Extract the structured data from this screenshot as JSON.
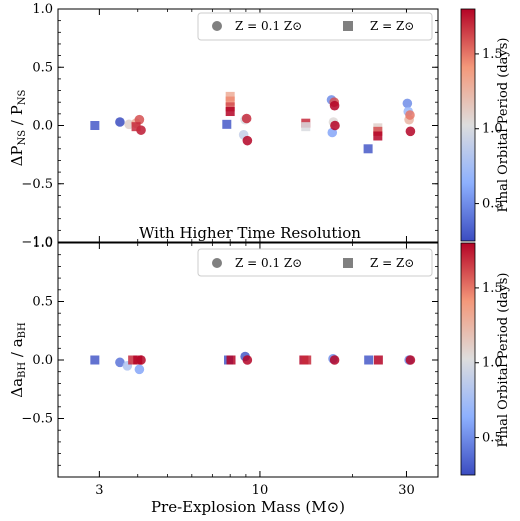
{
  "chart_data": [
    {
      "type": "scatter",
      "panel": "top",
      "ylabel": "ΔP_NS / P_NS",
      "ylim": [
        -1.0,
        1.0
      ],
      "yticks": [
        "−1.0",
        "−0.5",
        "0.0",
        "0.5",
        "1.0"
      ],
      "xscale": "log",
      "xlim": [
        2.2,
        38
      ],
      "annotation": "With Higher Time Resolution",
      "legend": {
        "placement": "top-right",
        "entries": [
          "Z = 0.1 Z⊙",
          "Z = Z⊙"
        ]
      },
      "series": [
        {
          "name": "Z = 0.1 Z⊙",
          "marker": "circle",
          "points": [
            {
              "x": 3.5,
              "y": 0.03,
              "p": 0.25
            },
            {
              "x": 3.75,
              "y": 0.01,
              "p": 1.1
            },
            {
              "x": 3.95,
              "y": 0.02,
              "p": 1.3
            },
            {
              "x": 4.05,
              "y": 0.05,
              "p": 1.6
            },
            {
              "x": 4.1,
              "y": -0.04,
              "p": 1.75
            },
            {
              "x": 8.85,
              "y": -0.08,
              "p": 0.9
            },
            {
              "x": 8.95,
              "y": 0.05,
              "p": 1.0
            },
            {
              "x": 9.05,
              "y": 0.06,
              "p": 1.7
            },
            {
              "x": 9.1,
              "y": -0.13,
              "p": 1.8
            },
            {
              "x": 17.1,
              "y": 0.22,
              "p": 0.5
            },
            {
              "x": 17.2,
              "y": -0.06,
              "p": 0.6
            },
            {
              "x": 17.35,
              "y": 0.03,
              "p": 1.05
            },
            {
              "x": 17.45,
              "y": 0.2,
              "p": 1.6
            },
            {
              "x": 17.5,
              "y": 0.17,
              "p": 1.8
            },
            {
              "x": 17.55,
              "y": 0.0,
              "p": 1.8
            },
            {
              "x": 30.2,
              "y": 0.19,
              "p": 0.5
            },
            {
              "x": 30.4,
              "y": 0.12,
              "p": 0.7
            },
            {
              "x": 30.6,
              "y": 0.05,
              "p": 1.25
            },
            {
              "x": 30.8,
              "y": 0.09,
              "p": 1.5
            },
            {
              "x": 30.9,
              "y": -0.05,
              "p": 1.8
            }
          ]
        },
        {
          "name": "Z = Z⊙",
          "marker": "square",
          "points": [
            {
              "x": 2.9,
              "y": 0.0,
              "p": 0.3
            },
            {
              "x": 3.95,
              "y": -0.01,
              "p": 1.7
            },
            {
              "x": 7.8,
              "y": 0.01,
              "p": 0.3
            },
            {
              "x": 8.0,
              "y": 0.25,
              "p": 1.3
            },
            {
              "x": 8.0,
              "y": 0.21,
              "p": 1.45
            },
            {
              "x": 8.0,
              "y": 0.16,
              "p": 1.6
            },
            {
              "x": 8.0,
              "y": 0.12,
              "p": 1.8
            },
            {
              "x": 14.1,
              "y": 0.02,
              "p": 1.7
            },
            {
              "x": 14.1,
              "y": -0.01,
              "p": 1.0
            },
            {
              "x": 22.5,
              "y": -0.2,
              "p": 0.3
            },
            {
              "x": 24.2,
              "y": -0.02,
              "p": 1.1
            },
            {
              "x": 24.2,
              "y": -0.05,
              "p": 1.6
            },
            {
              "x": 24.2,
              "y": -0.09,
              "p": 1.8
            }
          ]
        }
      ]
    },
    {
      "type": "scatter",
      "panel": "bottom",
      "ylabel": "Δa_BH / a_BH",
      "xlabel": "Pre-Explosion Mass (M⊙)",
      "ylim": [
        -1.0,
        1.0
      ],
      "yticks": [
        "−0.5",
        "0.0",
        "0.5",
        "1.0"
      ],
      "xscale": "log",
      "xlim": [
        2.2,
        38
      ],
      "xticks": [
        "3",
        "10",
        "30"
      ],
      "legend": {
        "placement": "top-right",
        "entries": [
          "Z = 0.1 Z⊙",
          "Z = Z⊙"
        ]
      },
      "series": [
        {
          "name": "Z = 0.1 Z⊙",
          "marker": "circle",
          "points": [
            {
              "x": 3.5,
              "y": -0.02,
              "p": 0.4
            },
            {
              "x": 3.7,
              "y": -0.05,
              "p": 0.8
            },
            {
              "x": 4.05,
              "y": -0.08,
              "p": 0.6
            },
            {
              "x": 4.1,
              "y": 0.0,
              "p": 1.8
            },
            {
              "x": 8.95,
              "y": 0.03,
              "p": 0.3
            },
            {
              "x": 9.1,
              "y": 0.0,
              "p": 1.8
            },
            {
              "x": 17.3,
              "y": 0.01,
              "p": 0.5
            },
            {
              "x": 17.5,
              "y": 0.0,
              "p": 1.8
            },
            {
              "x": 30.6,
              "y": 0.0,
              "p": 0.5
            },
            {
              "x": 30.9,
              "y": 0.0,
              "p": 1.8
            }
          ]
        },
        {
          "name": "Z = Z⊙",
          "marker": "square",
          "points": [
            {
              "x": 2.9,
              "y": 0.0,
              "p": 0.3
            },
            {
              "x": 3.85,
              "y": 0.0,
              "p": 1.7
            },
            {
              "x": 4.0,
              "y": 0.0,
              "p": 1.8
            },
            {
              "x": 7.9,
              "y": 0.0,
              "p": 0.3
            },
            {
              "x": 8.05,
              "y": 0.0,
              "p": 1.8
            },
            {
              "x": 13.9,
              "y": 0.0,
              "p": 1.8
            },
            {
              "x": 14.2,
              "y": 0.0,
              "p": 1.7
            },
            {
              "x": 22.6,
              "y": 0.0,
              "p": 0.3
            },
            {
              "x": 24.3,
              "y": 0.0,
              "p": 1.8
            }
          ]
        }
      ]
    }
  ],
  "colorbar": {
    "label": "Final Orbital Period (days)",
    "range": [
      0.25,
      1.8
    ],
    "ticks": [
      "0.5",
      "1.0",
      "1.5"
    ],
    "tick_values": [
      0.5,
      1.0,
      1.5
    ],
    "colormap": "coolwarm",
    "low_color": "#3b4cc0",
    "mid_color": "#dddddd",
    "high_color": "#b40426"
  }
}
